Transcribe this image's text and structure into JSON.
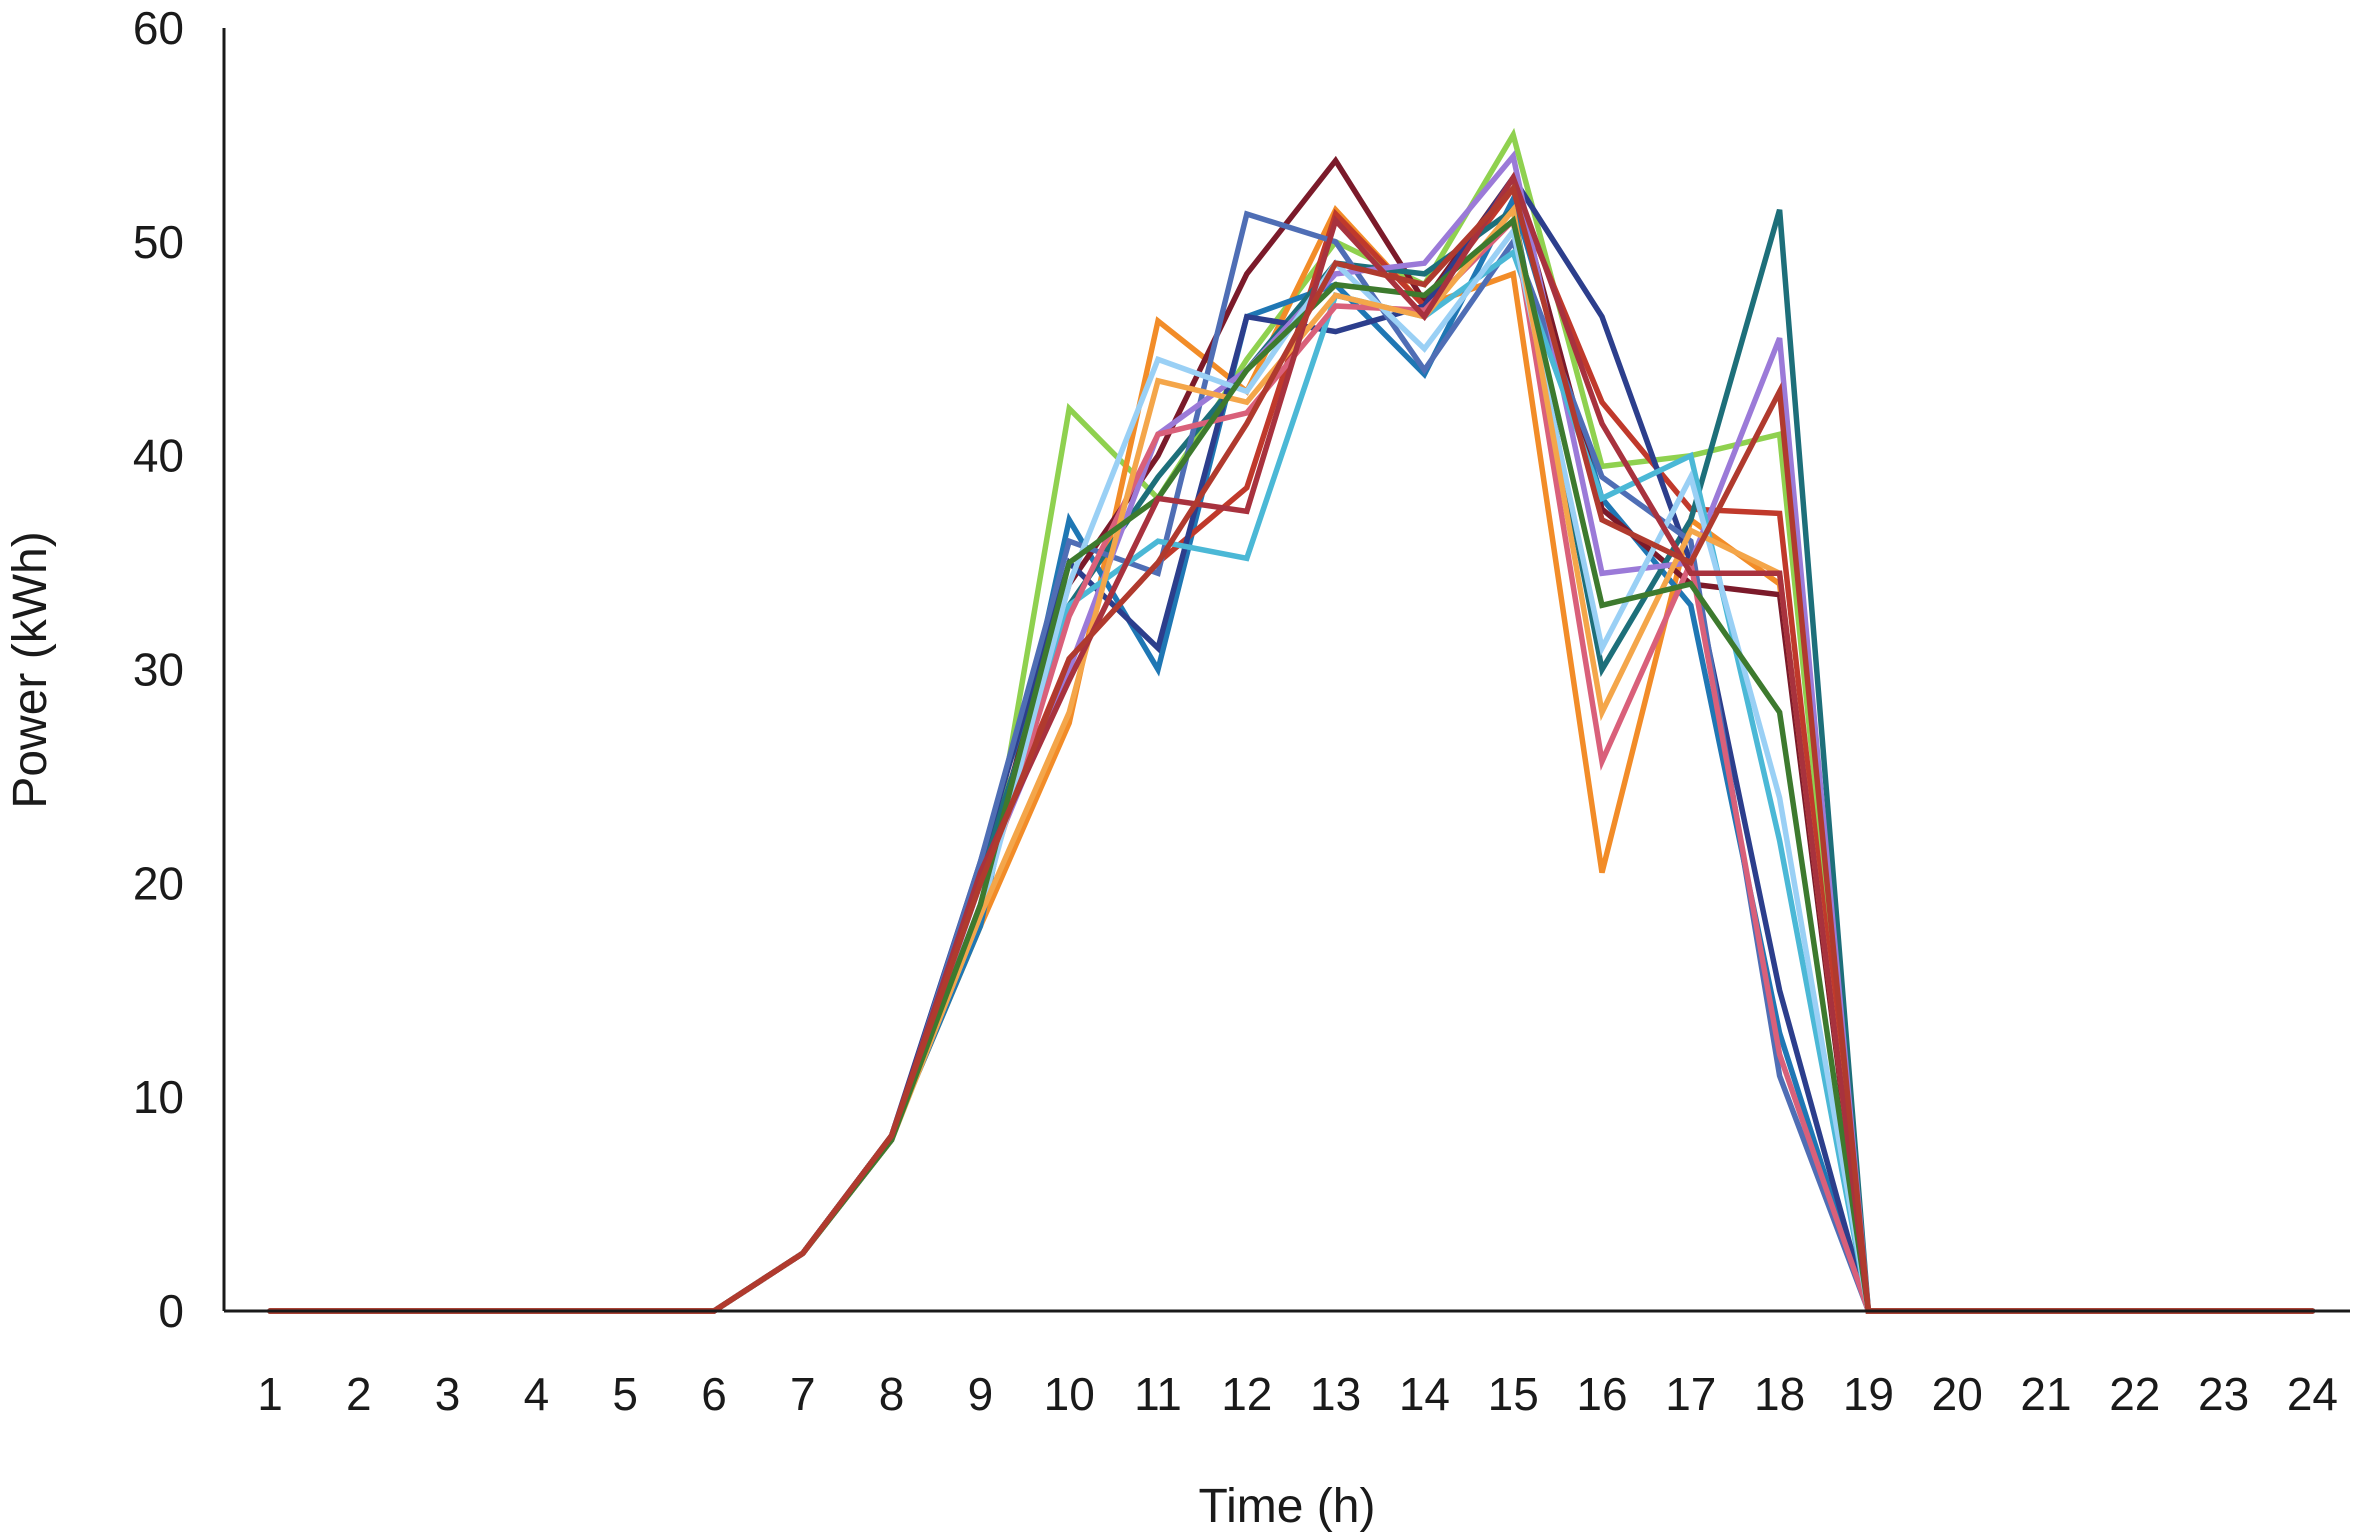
{
  "chart_data": {
    "type": "line",
    "title": "",
    "xlabel": "Time (h)",
    "ylabel": "Power (kWh)",
    "categories": [
      "1",
      "2",
      "3",
      "4",
      "5",
      "6",
      "7",
      "8",
      "9",
      "10",
      "11",
      "12",
      "13",
      "14",
      "15",
      "16",
      "17",
      "18",
      "19",
      "20",
      "21",
      "22",
      "23",
      "24"
    ],
    "ylim": [
      0,
      60
    ],
    "yticks": [
      "0",
      "10",
      "20",
      "30",
      "40",
      "50",
      "60"
    ],
    "grid": false,
    "legend": "none",
    "series": [
      {
        "color": "#8fd14f",
        "values": [
          0,
          0,
          0,
          0,
          0,
          0,
          2.7,
          8.2,
          18,
          42.2,
          38,
          44.5,
          50,
          48,
          55,
          39.5,
          40,
          41,
          0,
          0,
          0,
          0,
          0,
          0
        ]
      },
      {
        "color": "#f28c28",
        "values": [
          0,
          0,
          0,
          0,
          0,
          0,
          2.7,
          8.2,
          18,
          27.5,
          46.3,
          43,
          51.5,
          47,
          48.5,
          20.5,
          37,
          34,
          0,
          0,
          0,
          0,
          0,
          0
        ]
      },
      {
        "color": "#1f77b4",
        "values": [
          0,
          0,
          0,
          0,
          0,
          0,
          2.7,
          8.2,
          18,
          37,
          30,
          46.5,
          48,
          43.8,
          52,
          38,
          33,
          13,
          0,
          0,
          0,
          0,
          0,
          0
        ]
      },
      {
        "color": "#7b1a2a",
        "values": [
          0,
          0,
          0,
          0,
          0,
          0,
          2.7,
          8.2,
          20,
          34,
          40,
          48.5,
          53.8,
          47.2,
          53,
          37.5,
          34,
          33.5,
          0,
          0,
          0,
          0,
          0,
          0
        ]
      },
      {
        "color": "#c0392b",
        "values": [
          0,
          0,
          0,
          0,
          0,
          0,
          2.7,
          8.2,
          20.5,
          30.5,
          35,
          38.5,
          51.3,
          47,
          52.5,
          42.5,
          37.5,
          37.3,
          0,
          0,
          0,
          0,
          0,
          0
        ]
      },
      {
        "color": "#1d6f7a",
        "values": [
          0,
          0,
          0,
          0,
          0,
          0,
          2.7,
          8.2,
          20.5,
          33,
          39,
          44,
          49,
          48.5,
          51.5,
          30,
          37,
          51.5,
          0,
          0,
          0,
          0,
          0,
          0
        ]
      },
      {
        "color": "#2c3e8c",
        "values": [
          0,
          0,
          0,
          0,
          0,
          0,
          2.7,
          8.2,
          21,
          35,
          31,
          46.5,
          45.8,
          47,
          53,
          46.5,
          35,
          15,
          0,
          0,
          0,
          0,
          0,
          0
        ]
      },
      {
        "color": "#4f6eb5",
        "values": [
          0,
          0,
          0,
          0,
          0,
          0,
          2.7,
          8,
          21,
          36,
          34.5,
          51.3,
          50,
          44,
          50,
          39,
          36,
          11,
          0,
          0,
          0,
          0,
          0,
          0
        ]
      },
      {
        "color": "#9b7ad8",
        "values": [
          0,
          0,
          0,
          0,
          0,
          0,
          2.7,
          8,
          20,
          30,
          41,
          44,
          48.5,
          49,
          54,
          34.5,
          35,
          45.5,
          0,
          0,
          0,
          0,
          0,
          0
        ]
      },
      {
        "color": "#4bb8d6",
        "values": [
          0,
          0,
          0,
          0,
          0,
          0,
          2.7,
          8,
          19,
          33,
          36,
          35.2,
          47.5,
          46.5,
          49.5,
          38,
          40,
          22,
          0,
          0,
          0,
          0,
          0,
          0
        ]
      },
      {
        "color": "#d9607a",
        "values": [
          0,
          0,
          0,
          0,
          0,
          0,
          2.7,
          8,
          19,
          32.5,
          41,
          42,
          47,
          46.8,
          51,
          25.7,
          35,
          12,
          0,
          0,
          0,
          0,
          0,
          0
        ]
      },
      {
        "color": "#9ad0f5",
        "values": [
          0,
          0,
          0,
          0,
          0,
          0,
          2.7,
          8,
          18.5,
          34,
          44.5,
          43,
          49,
          45,
          50.5,
          31,
          39,
          24,
          0,
          0,
          0,
          0,
          0,
          0
        ]
      },
      {
        "color": "#f4a64a",
        "values": [
          0,
          0,
          0,
          0,
          0,
          0,
          2.7,
          8,
          18.5,
          28,
          43.5,
          42.5,
          47.5,
          46.5,
          51.5,
          28,
          36.5,
          34.5,
          0,
          0,
          0,
          0,
          0,
          0
        ]
      },
      {
        "color": "#3d7a2e",
        "values": [
          0,
          0,
          0,
          0,
          0,
          0,
          2.7,
          8,
          19,
          35,
          38,
          44,
          48,
          47.5,
          51,
          33,
          34,
          28,
          0,
          0,
          0,
          0,
          0,
          0
        ]
      },
      {
        "color": "#a8323e",
        "values": [
          0,
          0,
          0,
          0,
          0,
          0,
          2.7,
          8.2,
          20.5,
          29.5,
          38,
          37.4,
          51,
          46.5,
          53,
          41.5,
          34.5,
          34.5,
          0,
          0,
          0,
          0,
          0,
          0
        ]
      },
      {
        "color": "#b03a2e",
        "values": [
          0,
          0,
          0,
          0,
          0,
          0,
          2.7,
          8.2,
          20,
          30.5,
          35,
          41.5,
          49,
          48,
          52.5,
          37,
          35,
          43,
          0,
          0,
          0,
          0,
          0,
          0
        ]
      }
    ]
  }
}
